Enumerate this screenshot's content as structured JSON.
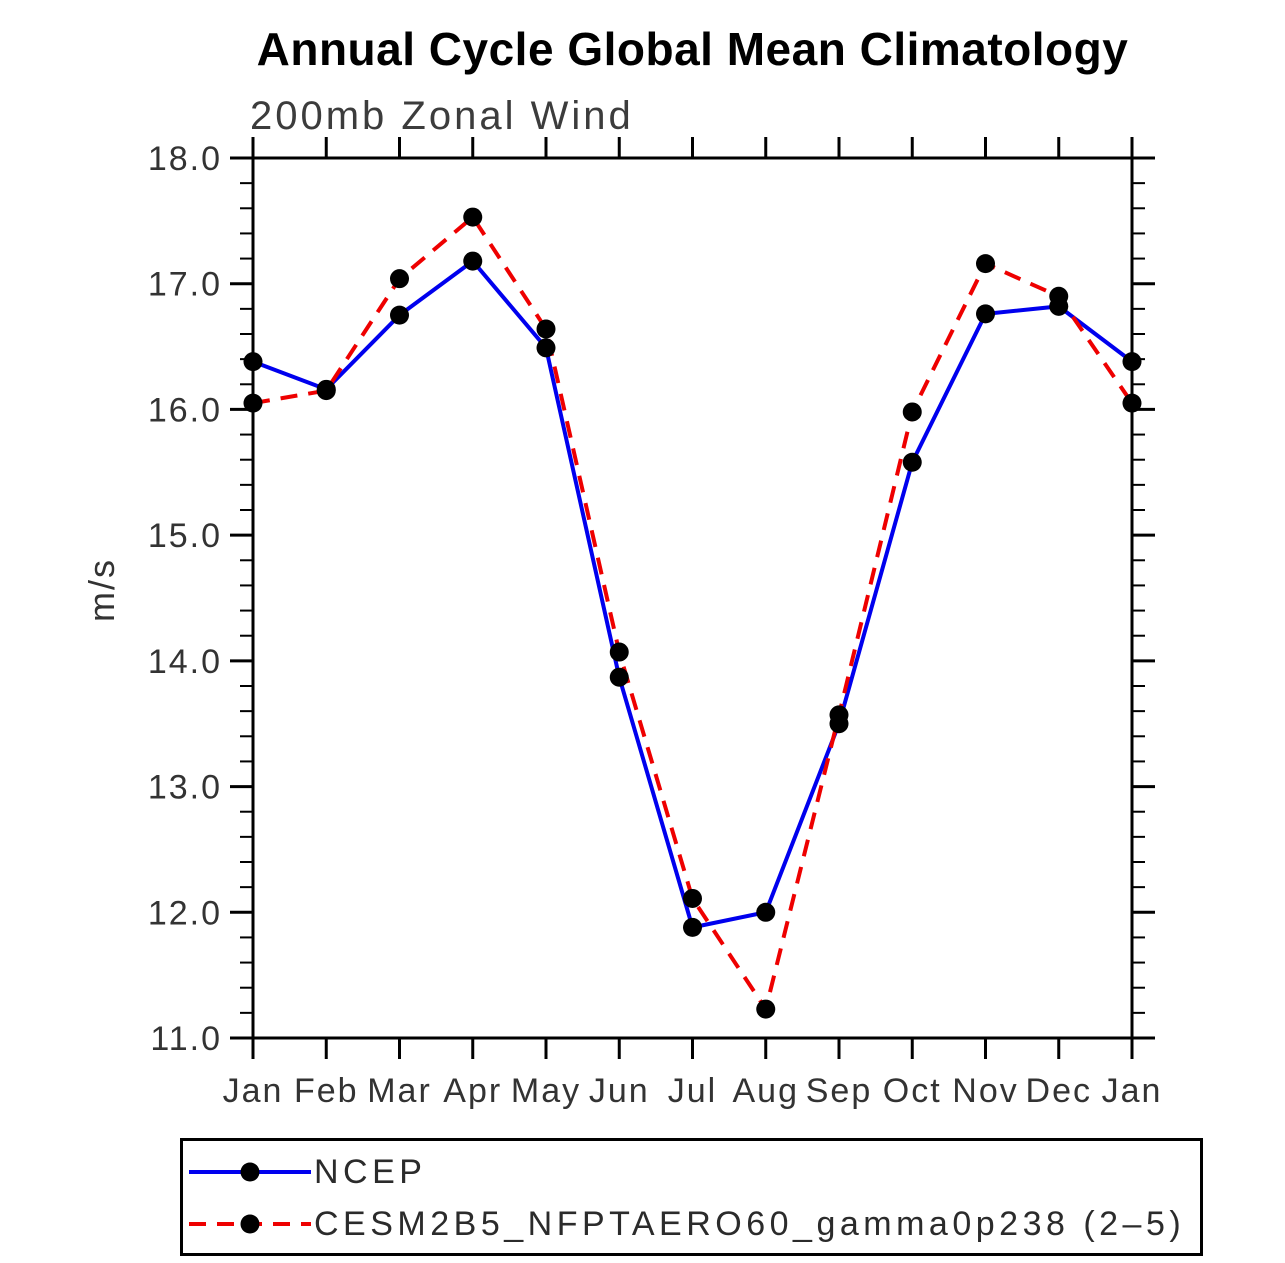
{
  "title": "Annual Cycle Global Mean Climatology",
  "subtitle": "200mb Zonal Wind",
  "y_axis_title": "m/s",
  "colors": {
    "ncep_line": "#0000ee",
    "cesm_line": "#ee0000",
    "marker": "#000000",
    "axis": "#000000",
    "tick_label": "#333333"
  },
  "legend": {
    "items": [
      {
        "label": "NCEP",
        "style": "solid"
      },
      {
        "label": "CESM2B5_NFPTAERO60_gamma0p238 (2–5)",
        "style": "dashed"
      }
    ]
  },
  "chart_data": {
    "type": "line",
    "title": "Annual Cycle Global Mean Climatology",
    "subtitle": "200mb Zonal Wind",
    "ylabel": "m/s",
    "categories": [
      "Jan",
      "Feb",
      "Mar",
      "Apr",
      "May",
      "Jun",
      "Jul",
      "Aug",
      "Sep",
      "Oct",
      "Nov",
      "Dec",
      "Jan"
    ],
    "ylim": [
      11.0,
      18.0
    ],
    "y_major_ticks": [
      11,
      12,
      13,
      14,
      15,
      16,
      17,
      18
    ],
    "y_tick_labels": [
      "11.0",
      "12.0",
      "13.0",
      "14.0",
      "15.0",
      "16.0",
      "17.0",
      "18.0"
    ],
    "y_minor_step": 0.2,
    "grid": "off",
    "legend_position": "below",
    "series": [
      {
        "name": "NCEP",
        "color": "#0000ee",
        "dash": "solid",
        "marker": "circle",
        "values": [
          16.38,
          16.16,
          16.75,
          17.18,
          16.49,
          13.87,
          11.88,
          12.0,
          13.5,
          15.58,
          16.76,
          16.82,
          16.38
        ]
      },
      {
        "name": "CESM2B5_NFPTAERO60_gamma0p238 (2–5)",
        "color": "#ee0000",
        "dash": "dashed",
        "marker": "circle",
        "values": [
          16.05,
          16.15,
          17.04,
          17.53,
          16.64,
          14.07,
          12.11,
          11.23,
          13.57,
          15.98,
          17.16,
          16.9,
          16.05
        ]
      }
    ]
  }
}
